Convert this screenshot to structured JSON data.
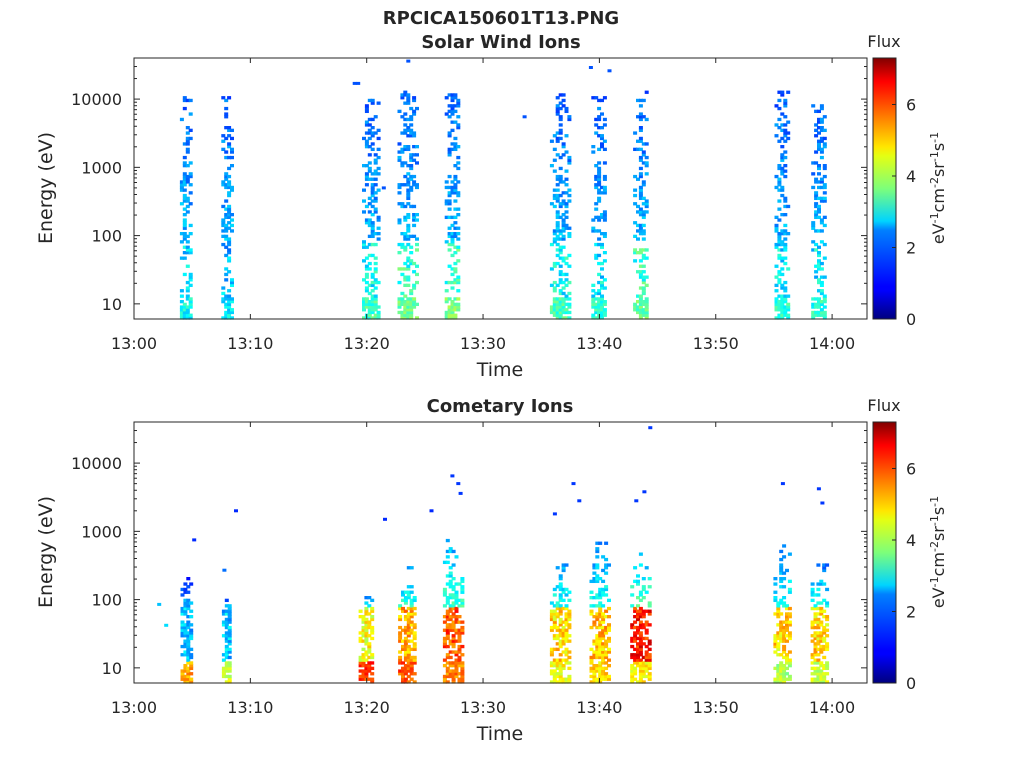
{
  "figure_title": "RPCICA150601T13.PNG",
  "chart_data": [
    {
      "type": "heatmap",
      "title": "Solar Wind Ions",
      "xlabel": "Time",
      "ylabel": "Energy (eV)",
      "x_ticks": [
        "13:00",
        "13:10",
        "13:20",
        "13:30",
        "13:40",
        "13:50",
        "14:00"
      ],
      "xlim": [
        "13:00",
        "14:03"
      ],
      "y_scale": "log",
      "y_ticks": [
        "10",
        "100",
        "1000",
        "10000"
      ],
      "ylim": [
        6,
        40000
      ],
      "colormap": "jet",
      "colorbar": {
        "label": "Flux",
        "units": "eV-1cm-2sr-1s-1",
        "range": [
          0,
          7.3
        ],
        "ticks": [
          "0",
          "2",
          "4",
          "6"
        ]
      },
      "bursts": [
        {
          "t": 13.0733,
          "half_width_min": 0.45,
          "e_max": 14000,
          "cold_peak": 2.8,
          "hot": 0
        },
        {
          "t": 13.1317,
          "half_width_min": 0.4,
          "e_max": 13000,
          "cold_peak": 2.6,
          "hot": 0
        },
        {
          "t": 13.3383,
          "half_width_min": 0.7,
          "e_max": 12000,
          "cold_peak": 3.2,
          "hot": 0.5
        },
        {
          "t": 13.39,
          "half_width_min": 0.75,
          "e_max": 13000,
          "cold_peak": 3.5,
          "hot": 0.5
        },
        {
          "t": 13.455,
          "half_width_min": 0.6,
          "e_max": 12000,
          "cold_peak": 3.6,
          "hot": 0.5
        },
        {
          "t": 13.6083,
          "half_width_min": 0.75,
          "e_max": 12000,
          "cold_peak": 3.2,
          "hot": 0.5
        },
        {
          "t": 13.665,
          "half_width_min": 0.6,
          "e_max": 12000,
          "cold_peak": 3.0,
          "hot": 0.5
        },
        {
          "t": 13.7233,
          "half_width_min": 0.5,
          "e_max": 13000,
          "cold_peak": 3.5,
          "hot": 0.5
        },
        {
          "t": 13.9267,
          "half_width_min": 0.55,
          "e_max": 13000,
          "cold_peak": 3.0,
          "hot": 0.5
        },
        {
          "t": 13.98,
          "half_width_min": 0.6,
          "e_max": 9500,
          "cold_peak": 3.0,
          "hot": 0.5
        }
      ],
      "scatter_points": [
        {
          "t": 13.3133,
          "e": 17000,
          "v": 1.5
        },
        {
          "t": 13.3183,
          "e": 17000,
          "v": 1.5
        },
        {
          "t": 13.39,
          "e": 36000,
          "v": 1.5
        },
        {
          "t": 13.6517,
          "e": 29000,
          "v": 1.5
        },
        {
          "t": 13.6783,
          "e": 26000,
          "v": 1.5
        },
        {
          "t": 13.5567,
          "e": 5500,
          "v": 1.5
        },
        {
          "t": 13.355,
          "e": 500,
          "v": 1.5
        }
      ]
    },
    {
      "type": "heatmap",
      "title": "Cometary Ions",
      "xlabel": "Time",
      "ylabel": "Energy (eV)",
      "x_ticks": [
        "13:00",
        "13:10",
        "13:20",
        "13:30",
        "13:40",
        "13:50",
        "14:00"
      ],
      "xlim": [
        "13:00",
        "14:03"
      ],
      "y_scale": "log",
      "y_ticks": [
        "10",
        "100",
        "1000",
        "10000"
      ],
      "ylim": [
        6,
        40000
      ],
      "colormap": "jet",
      "colorbar": {
        "label": "Flux",
        "units": "eV-1cm-2sr-1s-1",
        "range": [
          0,
          7.3
        ],
        "ticks": [
          "0",
          "2",
          "4",
          "6"
        ]
      },
      "bursts": [
        {
          "t": 13.0733,
          "half_width_min": 0.4,
          "e_max": 250,
          "cold_peak": 5.2,
          "hot": 2.3
        },
        {
          "t": 13.1317,
          "half_width_min": 0.35,
          "e_max": 120,
          "cold_peak": 4.3,
          "hot": 2.3
        },
        {
          "t": 13.33,
          "half_width_min": 0.5,
          "e_max": 120,
          "cold_peak": 6.0,
          "hot": 4.5
        },
        {
          "t": 13.39,
          "half_width_min": 0.7,
          "e_max": 350,
          "cold_peak": 5.8,
          "hot": 5.2
        },
        {
          "t": 13.455,
          "half_width_min": 0.75,
          "e_max": 800,
          "cold_peak": 5.5,
          "hot": 5.8
        },
        {
          "t": 13.6083,
          "half_width_min": 0.75,
          "e_max": 500,
          "cold_peak": 4.5,
          "hot": 4.8
        },
        {
          "t": 13.665,
          "half_width_min": 0.75,
          "e_max": 700,
          "cold_peak": 4.8,
          "hot": 5.0
        },
        {
          "t": 13.7233,
          "half_width_min": 0.75,
          "e_max": 500,
          "cold_peak": 4.6,
          "hot": 6.2
        },
        {
          "t": 13.9267,
          "half_width_min": 0.65,
          "e_max": 700,
          "cold_peak": 4.0,
          "hot": 4.8
        },
        {
          "t": 13.98,
          "half_width_min": 0.65,
          "e_max": 400,
          "cold_peak": 4.2,
          "hot": 4.8
        }
      ],
      "scatter_points": [
        {
          "t": 13.0333,
          "e": 85,
          "v": 2.3
        },
        {
          "t": 13.0433,
          "e": 42,
          "v": 2.5
        },
        {
          "t": 13.0833,
          "e": 750,
          "v": 1.2
        },
        {
          "t": 13.1267,
          "e": 270,
          "v": 1.7
        },
        {
          "t": 13.1433,
          "e": 2000,
          "v": 1.2
        },
        {
          "t": 13.3567,
          "e": 1500,
          "v": 1.2
        },
        {
          "t": 13.4233,
          "e": 2000,
          "v": 1.2
        },
        {
          "t": 13.4533,
          "e": 6500,
          "v": 1.3
        },
        {
          "t": 13.4617,
          "e": 5000,
          "v": 1.3
        },
        {
          "t": 13.465,
          "e": 3600,
          "v": 1.3
        },
        {
          "t": 13.6267,
          "e": 5000,
          "v": 1.3
        },
        {
          "t": 13.635,
          "e": 2800,
          "v": 1.3
        },
        {
          "t": 13.7167,
          "e": 2800,
          "v": 1.3
        },
        {
          "t": 13.7283,
          "e": 3800,
          "v": 1.3
        },
        {
          "t": 13.7367,
          "e": 33000,
          "v": 1.3
        },
        {
          "t": 13.9267,
          "e": 5000,
          "v": 1.3
        },
        {
          "t": 13.9783,
          "e": 4200,
          "v": 1.3
        },
        {
          "t": 13.9833,
          "e": 2600,
          "v": 1.3
        },
        {
          "t": 13.6,
          "e": 1800,
          "v": 1.3
        }
      ]
    }
  ],
  "colors": {
    "axis": "#262626",
    "background": "#ffffff"
  }
}
